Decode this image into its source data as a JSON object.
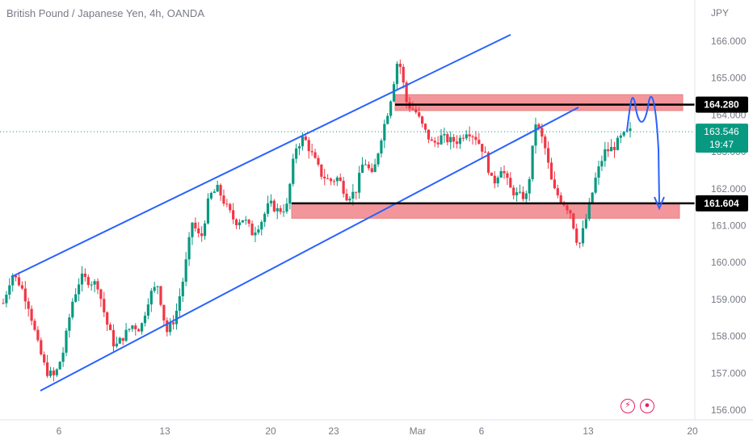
{
  "header": {
    "title": "British Pound / Japanese Yen, 4h, OANDA",
    "currency": "JPY"
  },
  "status_icons": {
    "lightning": "⚡",
    "record": "●"
  },
  "colors": {
    "up": "#089981",
    "down": "#f23645",
    "channel": "#2962ff",
    "zone": "#f28b91",
    "level": "#000000",
    "forecast": "#2962ff",
    "current": "#089981"
  },
  "chart_data": {
    "type": "candlestick",
    "title": "British Pound / Japanese Yen, 4h, OANDA",
    "ylabel": "JPY",
    "ylim": [
      155.8,
      166.9
    ],
    "y_ticks": [
      "156.000",
      "157.000",
      "158.000",
      "159.000",
      "160.000",
      "161.000",
      "162.000",
      "163.000",
      "164.000",
      "165.000",
      "166.000"
    ],
    "x_ticks": [
      "6",
      "13",
      "20",
      "23",
      "Mar",
      "6",
      "13",
      "20"
    ],
    "price_labels": {
      "resistance": "164.280",
      "support": "161.604",
      "current": "163.546",
      "countdown": "19:47"
    },
    "levels": {
      "resistance": 164.28,
      "support": 161.604,
      "current": 163.546
    },
    "zones": [
      {
        "name": "resistance zone",
        "low": 164.12,
        "high": 164.55
      },
      {
        "name": "support zone",
        "low": 161.2,
        "high": 161.6
      }
    ],
    "swing_path": [
      158.9,
      159.7,
      159.4,
      158.8,
      157.8,
      157.05,
      156.9,
      157.6,
      158.9,
      159.6,
      159.5,
      159.4,
      158.4,
      157.7,
      158.0,
      158.3,
      158.2,
      159.1,
      159.4,
      158.1,
      158.5,
      159.6,
      161.1,
      160.6,
      161.8,
      162.0,
      161.5,
      161.1,
      161.2,
      160.8,
      161.1,
      161.6,
      161.4,
      161.5,
      163.1,
      163.4,
      162.9,
      162.4,
      162.2,
      162.3,
      161.8,
      161.9,
      162.8,
      162.3,
      163.4,
      164.3,
      165.6,
      164.3,
      164.1,
      163.6,
      163.2,
      163.4,
      163.3,
      163.3,
      163.6,
      163.4,
      163.0,
      162.1,
      162.6,
      162.0,
      161.8,
      161.8,
      163.8,
      163.2,
      162.0,
      161.7,
      161.4,
      160.4,
      161.3,
      162.3,
      163.0,
      163.1,
      163.4,
      163.546
    ],
    "annotations": [
      "ascending channel",
      "resistance zone",
      "support zone",
      "projected path"
    ]
  }
}
